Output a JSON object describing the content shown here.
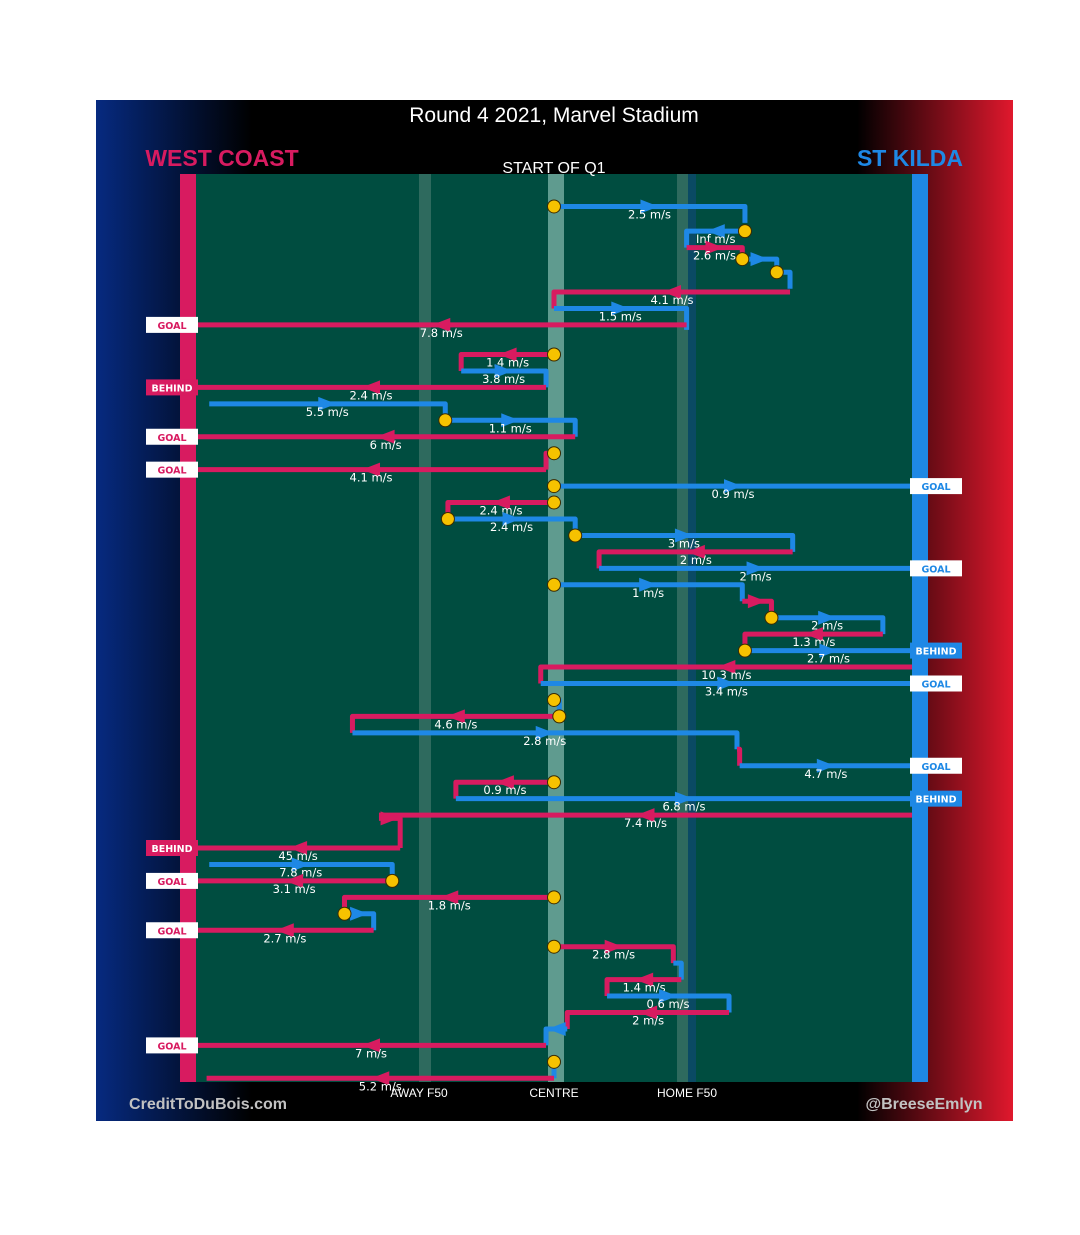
{
  "chart_data": {
    "type": "line",
    "title": "Round 4 2021, Marvel Stadium",
    "subtitle": "START OF Q1",
    "teams": {
      "left": {
        "name": "WEST COAST",
        "color": "#d81b60"
      },
      "right": {
        "name": "ST KILDA",
        "color": "#1e88e5"
      }
    },
    "x_axis": {
      "labels": [
        "AWAY F50",
        "CENTRE",
        "HOME F50"
      ],
      "positions": [
        -50,
        0,
        50
      ],
      "range": [
        -135,
        135
      ]
    },
    "credits": {
      "left": "CreditToDuBois.com",
      "right": "@BreeseEmlyn"
    },
    "colors": {
      "west_coast": "#d81b60",
      "st_kilda": "#1e88e5",
      "ground": "#004d40",
      "stoppage": "#f6c200"
    },
    "chains": [
      {
        "team": "STK",
        "label": "2.5 m/s",
        "pts": [
          [
            0,
            1
          ],
          [
            72,
            1
          ],
          [
            72,
            2
          ]
        ],
        "start_stoppage": true
      },
      {
        "team": "STK",
        "label": "Inf m/s",
        "pts": [
          [
            72,
            2.5
          ],
          [
            50,
            2.5
          ],
          [
            50,
            3.5
          ]
        ],
        "start_stoppage": true
      },
      {
        "team": "WCE",
        "label": "2.6 m/s",
        "pts": [
          [
            50,
            3.5
          ],
          [
            71,
            3.5
          ],
          [
            71,
            4.2
          ]
        ]
      },
      {
        "team": "STK",
        "label": "",
        "pts": [
          [
            71,
            4.2
          ],
          [
            84,
            4.2
          ],
          [
            84,
            5
          ]
        ],
        "start_stoppage": true
      },
      {
        "team": "STK",
        "label": "",
        "pts": [
          [
            84,
            5
          ],
          [
            89,
            5
          ],
          [
            89,
            6
          ]
        ],
        "start_stoppage": true
      },
      {
        "team": "WCE",
        "label": "4.1 m/s",
        "pts": [
          [
            89,
            6.2
          ],
          [
            0,
            6.2
          ],
          [
            0,
            7.2
          ]
        ]
      },
      {
        "team": "STK",
        "label": "1.5 m/s",
        "pts": [
          [
            0,
            7.2
          ],
          [
            50,
            7.2
          ],
          [
            50,
            8.5
          ]
        ]
      },
      {
        "team": "WCE",
        "label": "7.8 m/s",
        "pts": [
          [
            50,
            8.2
          ],
          [
            -135,
            8.2
          ]
        ],
        "outcome": "GOAL"
      },
      {
        "team": "WCE",
        "label": "1.4 m/s",
        "pts": [
          [
            0,
            10
          ],
          [
            -35,
            10
          ],
          [
            -35,
            11
          ]
        ],
        "start_stoppage": true
      },
      {
        "team": "STK",
        "label": "3.8 m/s",
        "pts": [
          [
            -35,
            11
          ],
          [
            -3,
            11
          ],
          [
            -3,
            12
          ]
        ]
      },
      {
        "team": "WCE",
        "label": "2.4 m/s",
        "pts": [
          [
            -3,
            12
          ],
          [
            -135,
            12
          ]
        ],
        "outcome": "BEHIND"
      },
      {
        "team": "STK",
        "label": "5.5 m/s",
        "pts": [
          [
            -130,
            13
          ],
          [
            -41,
            13
          ],
          [
            -41,
            14
          ]
        ]
      },
      {
        "team": "STK",
        "label": "1.1 m/s",
        "pts": [
          [
            -41,
            14
          ],
          [
            8,
            14
          ],
          [
            8,
            15
          ]
        ],
        "start_stoppage": true
      },
      {
        "team": "WCE",
        "label": "6 m/s",
        "pts": [
          [
            8,
            15
          ],
          [
            -135,
            15
          ]
        ],
        "outcome": "GOAL"
      },
      {
        "team": "WCE",
        "label": "",
        "pts": [
          [
            0,
            16
          ],
          [
            -3,
            16
          ],
          [
            -3,
            17
          ]
        ],
        "start_stoppage": true
      },
      {
        "team": "WCE",
        "label": "4.1 m/s",
        "pts": [
          [
            -3,
            17
          ],
          [
            -135,
            17
          ]
        ],
        "outcome": "GOAL"
      },
      {
        "team": "STK",
        "label": "0.9 m/s",
        "pts": [
          [
            0,
            18
          ],
          [
            135,
            18
          ]
        ],
        "outcome": "GOAL",
        "start_stoppage": true
      },
      {
        "team": "WCE",
        "label": "2.4 m/s",
        "pts": [
          [
            0,
            19
          ],
          [
            -40,
            19
          ],
          [
            -40,
            20
          ]
        ],
        "start_stoppage": true
      },
      {
        "team": "STK",
        "label": "2.4 m/s",
        "pts": [
          [
            -40,
            20
          ],
          [
            8,
            20
          ],
          [
            8,
            21
          ]
        ],
        "start_stoppage": true
      },
      {
        "team": "STK",
        "label": "3 m/s",
        "pts": [
          [
            8,
            21
          ],
          [
            90,
            21
          ],
          [
            90,
            22
          ]
        ],
        "start_stoppage": true
      },
      {
        "team": "WCE",
        "label": "2 m/s",
        "pts": [
          [
            90,
            22
          ],
          [
            17,
            22
          ],
          [
            17,
            23
          ]
        ]
      },
      {
        "team": "STK",
        "label": "2 m/s",
        "pts": [
          [
            17,
            23
          ],
          [
            135,
            23
          ]
        ],
        "outcome": "GOAL"
      },
      {
        "team": "STK",
        "label": "1 m/s",
        "pts": [
          [
            0,
            24
          ],
          [
            71,
            24
          ],
          [
            71,
            25
          ]
        ],
        "start_stoppage": true
      },
      {
        "team": "WCE",
        "label": "",
        "pts": [
          [
            71,
            25
          ],
          [
            82,
            25
          ],
          [
            82,
            26
          ]
        ]
      },
      {
        "team": "STK",
        "label": "2 m/s",
        "pts": [
          [
            82,
            26
          ],
          [
            124,
            26
          ],
          [
            124,
            27
          ]
        ],
        "start_stoppage": true
      },
      {
        "team": "WCE",
        "label": "1.3 m/s",
        "pts": [
          [
            124,
            27
          ],
          [
            72,
            27
          ],
          [
            72,
            28
          ]
        ]
      },
      {
        "team": "STK",
        "label": "2.7 m/s",
        "pts": [
          [
            72,
            28
          ],
          [
            135,
            28
          ]
        ],
        "outcome": "BEHIND",
        "start_stoppage": true
      },
      {
        "team": "WCE",
        "label": "10.3 m/s",
        "pts": [
          [
            135,
            29
          ],
          [
            -5,
            29
          ],
          [
            -5,
            30
          ]
        ]
      },
      {
        "team": "STK",
        "label": "3.4 m/s",
        "pts": [
          [
            -5,
            30
          ],
          [
            135,
            30
          ]
        ],
        "outcome": "GOAL"
      },
      {
        "team": "STK",
        "label": "",
        "pts": [
          [
            0,
            31
          ],
          [
            2,
            31
          ],
          [
            2,
            32
          ]
        ],
        "start_stoppage": true
      },
      {
        "team": "WCE",
        "label": "4.6 m/s",
        "pts": [
          [
            2,
            32
          ],
          [
            -76,
            32
          ],
          [
            -76,
            33
          ]
        ],
        "start_stoppage": true
      },
      {
        "team": "STK",
        "label": "2.8 m/s",
        "pts": [
          [
            -76,
            33
          ],
          [
            69,
            33
          ],
          [
            69,
            34
          ]
        ]
      },
      {
        "team": "WCE",
        "label": "",
        "pts": [
          [
            69,
            34
          ],
          [
            70,
            34
          ],
          [
            70,
            35
          ]
        ]
      },
      {
        "team": "STK",
        "label": "4.7 m/s",
        "pts": [
          [
            70,
            35
          ],
          [
            135,
            35
          ]
        ],
        "outcome": "GOAL"
      },
      {
        "team": "WCE",
        "label": "0.9 m/s",
        "pts": [
          [
            0,
            36
          ],
          [
            -37,
            36
          ],
          [
            -37,
            37
          ]
        ],
        "start_stoppage": true
      },
      {
        "team": "STK",
        "label": "6.8 m/s",
        "pts": [
          [
            -37,
            37
          ],
          [
            135,
            37
          ]
        ],
        "outcome": "BEHIND"
      },
      {
        "team": "WCE",
        "label": "7.4 m/s",
        "pts": [
          [
            135,
            38
          ],
          [
            -66,
            38
          ]
        ]
      },
      {
        "team": "WCE",
        "label": "",
        "pts": [
          [
            -66,
            38.2
          ],
          [
            -58,
            38.2
          ],
          [
            -58,
            40
          ]
        ]
      },
      {
        "team": "WCE",
        "label": "45 m/s",
        "pts": [
          [
            -58,
            40
          ],
          [
            -135,
            40
          ]
        ],
        "outcome": "BEHIND"
      },
      {
        "team": "STK",
        "label": "7.8 m/s",
        "pts": [
          [
            -130,
            41
          ],
          [
            -61,
            41
          ],
          [
            -61,
            42
          ]
        ]
      },
      {
        "team": "WCE",
        "label": "3.1 m/s",
        "pts": [
          [
            -61,
            42
          ],
          [
            -135,
            42
          ]
        ],
        "outcome": "GOAL",
        "start_stoppage": true
      },
      {
        "team": "WCE",
        "label": "1.8 m/s",
        "pts": [
          [
            0,
            43
          ],
          [
            -79,
            43
          ],
          [
            -79,
            44
          ]
        ],
        "start_stoppage": true
      },
      {
        "team": "STK",
        "label": "",
        "pts": [
          [
            -79,
            44
          ],
          [
            -68,
            44
          ],
          [
            -68,
            45
          ]
        ],
        "start_stoppage": true
      },
      {
        "team": "WCE",
        "label": "2.7 m/s",
        "pts": [
          [
            -68,
            45
          ],
          [
            -135,
            45
          ]
        ],
        "outcome": "GOAL"
      },
      {
        "team": "WCE",
        "label": "2.8 m/s",
        "pts": [
          [
            0,
            46
          ],
          [
            45,
            46
          ],
          [
            45,
            47
          ]
        ],
        "start_stoppage": true
      },
      {
        "team": "STK",
        "label": "",
        "pts": [
          [
            45,
            47
          ],
          [
            48,
            47
          ],
          [
            48,
            48
          ]
        ]
      },
      {
        "team": "WCE",
        "label": "1.4 m/s",
        "pts": [
          [
            48,
            48
          ],
          [
            20,
            48
          ],
          [
            20,
            49
          ]
        ]
      },
      {
        "team": "STK",
        "label": "0.6 m/s",
        "pts": [
          [
            20,
            49
          ],
          [
            66,
            49
          ],
          [
            66,
            50
          ]
        ]
      },
      {
        "team": "WCE",
        "label": "2 m/s",
        "pts": [
          [
            66,
            50
          ],
          [
            5,
            50
          ],
          [
            5,
            51
          ]
        ]
      },
      {
        "team": "STK",
        "label": "",
        "pts": [
          [
            5,
            51
          ],
          [
            -3,
            51
          ],
          [
            -3,
            52
          ]
        ]
      },
      {
        "team": "WCE",
        "label": "7 m/s",
        "pts": [
          [
            -3,
            52
          ],
          [
            -135,
            52
          ]
        ],
        "outcome": "GOAL"
      },
      {
        "team": "STK",
        "label": "",
        "pts": [
          [
            0,
            53
          ],
          [
            0,
            54
          ]
        ],
        "start_stoppage": true
      },
      {
        "team": "WCE",
        "label": "5.2 m/s",
        "pts": [
          [
            0,
            54
          ],
          [
            -131,
            54
          ]
        ]
      }
    ]
  }
}
